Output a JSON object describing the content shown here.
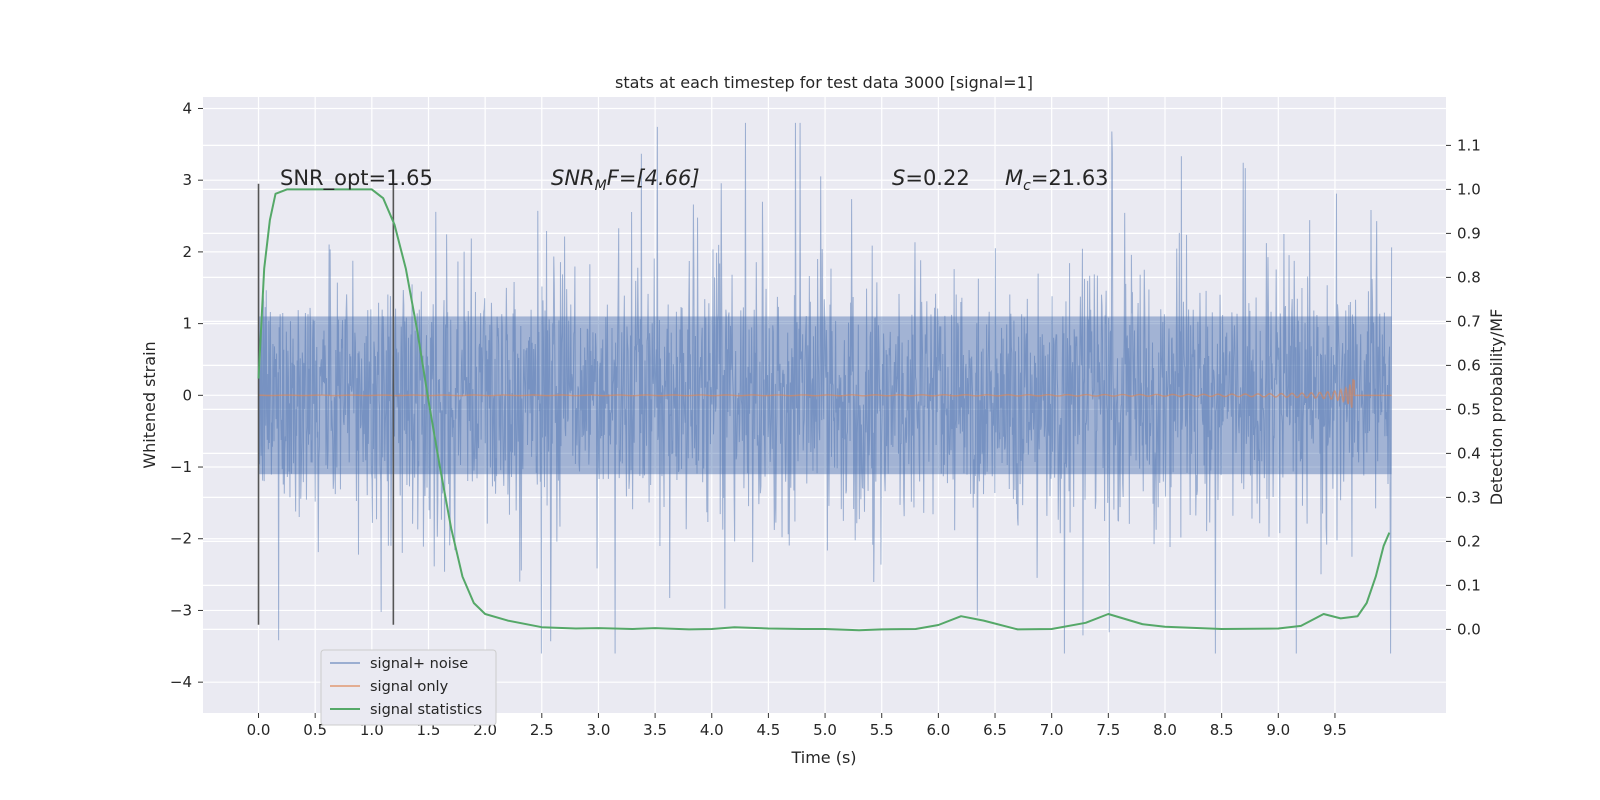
{
  "chart_data": {
    "type": "line",
    "title": "stats at each timestep for test data 3000 [signal=1]",
    "xlabel": "Time (s)",
    "ylabel_left": "Whitened strain",
    "ylabel_right": "Detection probability/MF",
    "grid": true,
    "x_ticks": [
      "0.0",
      "0.5",
      "1.0",
      "1.5",
      "2.0",
      "2.5",
      "3.0",
      "3.5",
      "4.0",
      "4.5",
      "5.0",
      "5.5",
      "6.0",
      "6.5",
      "7.0",
      "7.5",
      "8.0",
      "8.5",
      "9.0",
      "9.5"
    ],
    "y_left_ticks": [
      "4",
      "3",
      "2",
      "1",
      "0",
      "−1",
      "−2",
      "−3",
      "−4"
    ],
    "y_right_ticks": [
      "1.1",
      "1.0",
      "0.9",
      "0.8",
      "0.7",
      "0.6",
      "0.5",
      "0.4",
      "0.3",
      "0.2",
      "0.1",
      "0.0"
    ],
    "xlim": [
      -0.49,
      10.48
    ],
    "ylim_left": [
      -4.43,
      4.16
    ],
    "ylim_right": [
      -0.19,
      1.21
    ],
    "colors": {
      "noise": "#4c72b0",
      "signal": "#dd8452",
      "stats": "#55a868",
      "vline": "#555555"
    },
    "annotations": {
      "snr_opt": "SNR_opt=1.65",
      "snr_mf_main": "SNR",
      "snr_mf_sub": "M",
      "snr_mf_rest": "F=[4.66]",
      "s_var": "S",
      "s_rest": "=0.22",
      "mc_main": "M",
      "mc_sub": "c",
      "mc_rest": "=21.63"
    },
    "vertical_lines_x": [
      0.0,
      1.19
    ],
    "series": [
      {
        "name": "signal+ noise",
        "kind": "noisy",
        "duration": 10.0,
        "envelope": [
          -2.9,
          2.9
        ],
        "band": [
          -1.1,
          1.1
        ]
      },
      {
        "name": "signal only",
        "kind": "chirp",
        "merger_time": 9.67,
        "peak_amplitude": 0.33
      },
      {
        "name": "signal statistics",
        "axis": "right",
        "x": [
          0.0,
          0.05,
          0.1,
          0.15,
          0.25,
          0.4,
          0.6,
          0.8,
          1.0,
          1.1,
          1.2,
          1.3,
          1.4,
          1.5,
          1.6,
          1.7,
          1.8,
          1.9,
          2.0,
          2.2,
          2.5,
          2.8,
          3.0,
          3.3,
          3.5,
          3.8,
          4.0,
          4.2,
          4.5,
          4.8,
          5.0,
          5.3,
          5.5,
          5.8,
          6.0,
          6.2,
          6.4,
          6.7,
          7.0,
          7.3,
          7.5,
          7.8,
          8.0,
          8.5,
          9.0,
          9.2,
          9.4,
          9.55,
          9.7,
          9.78,
          9.86,
          9.93,
          9.98
        ],
        "y": [
          0.57,
          0.82,
          0.93,
          0.99,
          1.0,
          1.0,
          1.0,
          1.0,
          1.0,
          0.98,
          0.92,
          0.82,
          0.68,
          0.52,
          0.37,
          0.23,
          0.12,
          0.06,
          0.035,
          0.02,
          0.005,
          0.002,
          0.003,
          0.001,
          0.003,
          0.0,
          0.001,
          0.005,
          0.002,
          0.001,
          0.001,
          -0.002,
          0.0,
          0.001,
          0.01,
          0.03,
          0.02,
          0.0,
          0.001,
          0.015,
          0.035,
          0.012,
          0.006,
          0.001,
          0.002,
          0.008,
          0.035,
          0.025,
          0.03,
          0.06,
          0.12,
          0.19,
          0.22
        ]
      }
    ]
  }
}
